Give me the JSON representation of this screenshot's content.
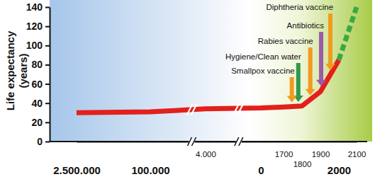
{
  "chart_data": {
    "type": "line",
    "y_label": [
      "Life expectancy",
      "(years)"
    ],
    "categories": [
      "2.500.000",
      "100.000",
      "4.000",
      "0",
      "1700",
      "1800",
      "1900",
      "2000",
      "2100"
    ],
    "series": [
      {
        "color": "#e3201b",
        "line_style": "solid",
        "values": [
          30,
          31,
          34,
          35,
          36,
          37,
          52,
          85,
          null
        ]
      },
      {
        "color": "#3aa845",
        "line_style": "dashed",
        "values": [
          null,
          null,
          null,
          null,
          null,
          null,
          null,
          85,
          140
        ]
      }
    ],
    "ylim": [
      0,
      140
    ],
    "yticks": [
      0,
      20,
      40,
      60,
      80,
      100,
      120,
      140
    ],
    "annotations": [
      {
        "text": "Diphtheria vaccine",
        "color": "#f29a1f"
      },
      {
        "text": "Antibiotics",
        "color": "#9b5aa6"
      },
      {
        "text": "Rabies vaccine",
        "color": "#f29a1f"
      },
      {
        "text": "Hygiene/Clean water",
        "color": "#2f9a48"
      },
      {
        "text": "Smallpox vaccine",
        "color": "#f29a1f"
      }
    ]
  }
}
